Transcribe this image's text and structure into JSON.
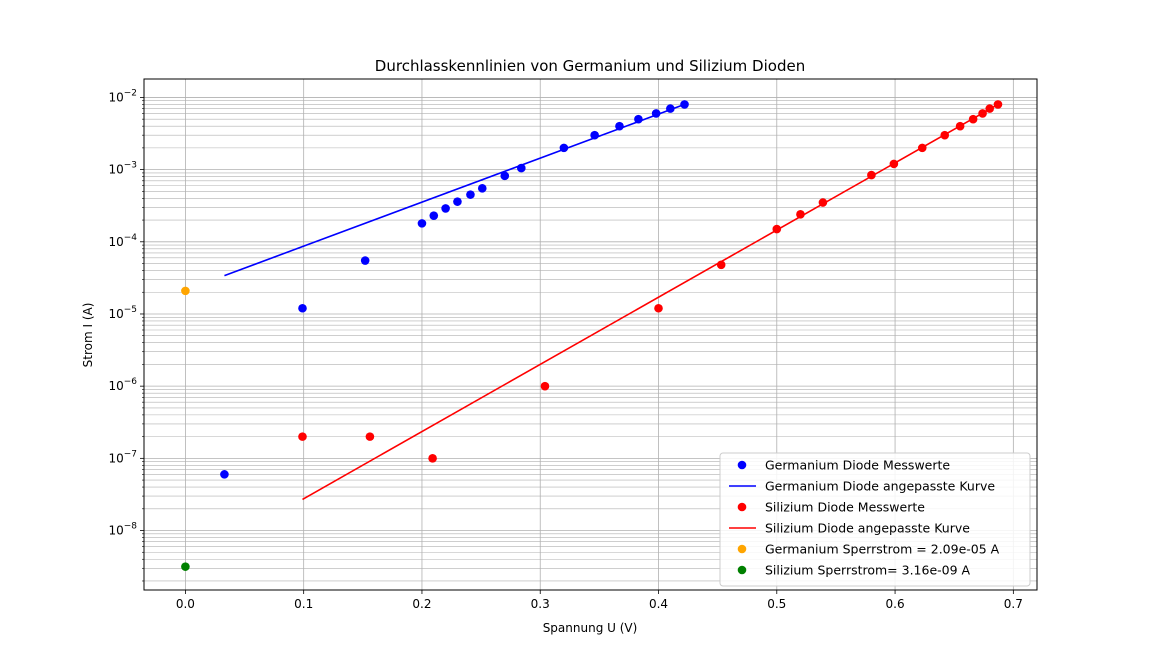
{
  "chart_data": {
    "type": "scatter",
    "title": "Durchlasskennlinien von Germanium und Silizium Dioden",
    "xlabel": "Spannung U (V)",
    "ylabel": "Strom I (A)",
    "xlim": [
      -0.035,
      0.72
    ],
    "ylim": [
      1.5e-09,
      0.018
    ],
    "yscale": "log",
    "grid": true,
    "legend_position": "bottom-right",
    "xticks": [
      0.0,
      0.1,
      0.2,
      0.3,
      0.4,
      0.5,
      0.6,
      0.7
    ],
    "xtick_labels": [
      "0.0",
      "0.1",
      "0.2",
      "0.3",
      "0.4",
      "0.5",
      "0.6",
      "0.7"
    ],
    "yticks": [
      {
        "value": 1e-08,
        "base": "10",
        "exp": "−8"
      },
      {
        "value": 1e-07,
        "base": "10",
        "exp": "−7"
      },
      {
        "value": 1e-06,
        "base": "10",
        "exp": "−6"
      },
      {
        "value": 1e-05,
        "base": "10",
        "exp": "−5"
      },
      {
        "value": 0.0001,
        "base": "10",
        "exp": "−4"
      },
      {
        "value": 0.001,
        "base": "10",
        "exp": "−3"
      },
      {
        "value": 0.01,
        "base": "10",
        "exp": "−2"
      }
    ],
    "series": [
      {
        "name": "Germanium Diode Messwerte",
        "kind": "points",
        "color": "#0000ff",
        "x": [
          0.033,
          0.099,
          0.152,
          0.2,
          0.21,
          0.22,
          0.23,
          0.241,
          0.251,
          0.27,
          0.284,
          0.32,
          0.346,
          0.367,
          0.383,
          0.398,
          0.41,
          0.422
        ],
        "y": [
          6e-08,
          1.2e-05,
          5.5e-05,
          0.00018,
          0.00023,
          0.00029,
          0.00036,
          0.00045,
          0.00055,
          0.00082,
          0.00105,
          0.002,
          0.003,
          0.004,
          0.005,
          0.006,
          0.007,
          0.008
        ]
      },
      {
        "name": "Germanium Diode angepasste Kurve",
        "kind": "line",
        "color": "#0000ff",
        "x": [
          0.033,
          0.422
        ],
        "y": [
          3.4e-05,
          0.008
        ]
      },
      {
        "name": "Silizium Diode Messwerte",
        "kind": "points",
        "color": "#ff0000",
        "x": [
          0.099,
          0.156,
          0.209,
          0.304,
          0.4,
          0.453,
          0.5,
          0.52,
          0.539,
          0.58,
          0.599,
          0.623,
          0.642,
          0.655,
          0.666,
          0.674,
          0.68,
          0.687
        ],
        "y": [
          2e-07,
          2e-07,
          1e-07,
          1e-06,
          1.2e-05,
          4.8e-05,
          0.00015,
          0.00024,
          0.00035,
          0.00084,
          0.0012,
          0.002,
          0.003,
          0.004,
          0.005,
          0.006,
          0.007,
          0.008
        ]
      },
      {
        "name": "Silizium Diode angepasste Kurve",
        "kind": "line",
        "color": "#ff0000",
        "x": [
          0.099,
          0.687
        ],
        "y": [
          2.7e-08,
          0.008
        ]
      },
      {
        "name": "Germanium Sperrstrom = 2.09e-05 A",
        "kind": "points",
        "color": "#ffa500",
        "x": [
          0.0
        ],
        "y": [
          2.09e-05
        ]
      },
      {
        "name": "Silizium Sperrstrom= 3.16e-09 A",
        "kind": "points",
        "color": "#008000",
        "x": [
          0.0
        ],
        "y": [
          3.16e-09
        ]
      }
    ]
  }
}
